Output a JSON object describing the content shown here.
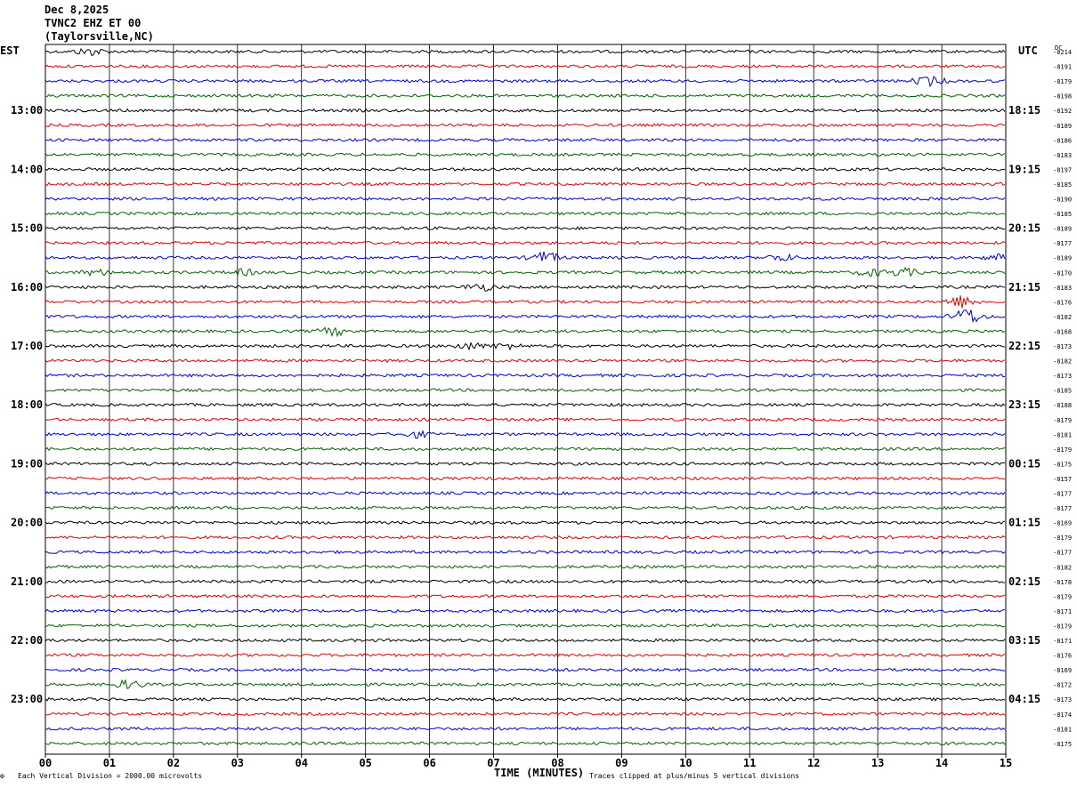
{
  "header": {
    "date": "Dec 8,2025",
    "station": "TVNC2 EHZ ET 00",
    "location": "(Taylorsville,NC)"
  },
  "chart_data": {
    "type": "line",
    "title": "",
    "left_axis_label": "EST",
    "right_axis_label": "UTC",
    "dc_label": "DC",
    "xlabel": "TIME (MINUTES)",
    "x_ticks": [
      "00",
      "01",
      "02",
      "03",
      "04",
      "05",
      "06",
      "07",
      "08",
      "09",
      "10",
      "11",
      "12",
      "13",
      "14",
      "15"
    ],
    "xlim": [
      0,
      15
    ],
    "left_hour_labels": [
      "13:00",
      "14:00",
      "15:00",
      "16:00",
      "17:00",
      "18:00",
      "19:00",
      "20:00",
      "21:00",
      "22:00",
      "23:00"
    ],
    "right_hour_labels": [
      "18:15",
      "19:15",
      "20:15",
      "21:15",
      "22:15",
      "23:15",
      "00:15",
      "01:15",
      "02:15",
      "03:15",
      "04:15"
    ],
    "dc_offsets": [
      "-8214",
      "-8191",
      "-8179",
      "-8198",
      "-8192",
      "-8189",
      "-8186",
      "-8183",
      "-8197",
      "-8185",
      "-8190",
      "-8185",
      "-8189",
      "-8177",
      "-8189",
      "-8170",
      "-8183",
      "-8176",
      "-8182",
      "-8168",
      "-8173",
      "-8182",
      "-8173",
      "-8185",
      "-8188",
      "-8179",
      "-8181",
      "-8179",
      "-8175",
      "-8157",
      "-8177",
      "-8177",
      "-8169",
      "-8179",
      "-8177",
      "-8182",
      "-8178",
      "-8179",
      "-8171",
      "-8179",
      "-8171",
      "-8176",
      "-8169",
      "-8172",
      "-8173",
      "-8174",
      "-8181",
      "-8175"
    ],
    "trace_colors": [
      "#000000",
      "#dd0000",
      "#0000cc",
      "#006400"
    ],
    "events": [
      {
        "trace": 0,
        "minute": 0.7,
        "amp": 1.8
      },
      {
        "trace": 2,
        "minute": 13.8,
        "amp": 2.2
      },
      {
        "trace": 14,
        "minute": 7.8,
        "amp": 2.8
      },
      {
        "trace": 14,
        "minute": 11.5,
        "amp": 1.6
      },
      {
        "trace": 14,
        "minute": 14.9,
        "amp": 1.6
      },
      {
        "trace": 15,
        "minute": 0.8,
        "amp": 1.4
      },
      {
        "trace": 15,
        "minute": 3.1,
        "amp": 1.4
      },
      {
        "trace": 15,
        "minute": 12.9,
        "amp": 1.6
      },
      {
        "trace": 15,
        "minute": 13.4,
        "amp": 2.0
      },
      {
        "trace": 16,
        "minute": 6.8,
        "amp": 1.8
      },
      {
        "trace": 17,
        "minute": 14.3,
        "amp": 3.0
      },
      {
        "trace": 18,
        "minute": 14.4,
        "amp": 4.2
      },
      {
        "trace": 19,
        "minute": 4.5,
        "amp": 2.0
      },
      {
        "trace": 20,
        "minute": 6.6,
        "amp": 1.6
      },
      {
        "trace": 20,
        "minute": 7.2,
        "amp": 1.4
      },
      {
        "trace": 26,
        "minute": 5.8,
        "amp": 1.4
      },
      {
        "trace": 43,
        "minute": 1.3,
        "amp": 2.0
      }
    ],
    "footer_scale": "Each Vertical Division = 2000.00 microvolts",
    "footer_clip": "Traces clipped at plus/minus 5 vertical divisions"
  }
}
